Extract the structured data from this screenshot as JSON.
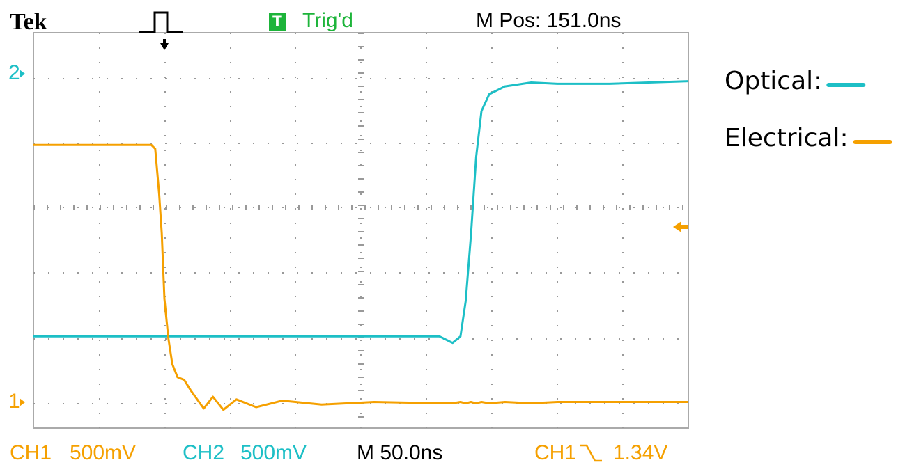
{
  "chart_data": {
    "type": "line",
    "x": [
      0,
      50,
      90,
      93,
      96,
      98,
      100,
      103,
      106,
      110,
      115,
      120,
      125,
      130,
      137,
      145,
      155,
      170,
      190,
      220,
      260,
      310,
      320,
      326,
      330,
      334,
      338,
      342,
      348,
      360,
      380,
      400,
      440,
      500
    ],
    "xlim": [
      0,
      500
    ],
    "series": [
      {
        "name": "Optical:",
        "color": "#1dbfc6",
        "ylim": [
          -2.67,
          0.35
        ],
        "values": [
          -1.97,
          -1.97,
          -1.97,
          -1.97,
          -1.97,
          -1.97,
          -1.97,
          -1.97,
          -1.97,
          -1.97,
          -1.97,
          -1.97,
          -1.97,
          -1.97,
          -1.97,
          -1.97,
          -1.97,
          -1.97,
          -1.97,
          -1.97,
          -1.97,
          -1.97,
          -2.02,
          -1.97,
          -1.7,
          -1.2,
          -0.6,
          -0.25,
          -0.12,
          -0.06,
          -0.03,
          -0.04,
          -0.04,
          -0.02
        ]
      },
      {
        "name": "Electrical:",
        "color": "#f5a000",
        "ylim": [
          -0.19,
          2.84
        ],
        "values": [
          1.98,
          1.98,
          1.98,
          1.95,
          1.6,
          1.3,
          0.8,
          0.5,
          0.3,
          0.2,
          0.18,
          0.1,
          0.03,
          -0.04,
          0.05,
          -0.05,
          0.03,
          -0.03,
          0.02,
          -0.01,
          0.01,
          0,
          0,
          0.01,
          0,
          0.01,
          0,
          0.01,
          0,
          0.01,
          0,
          0.01,
          0.01,
          0.01
        ]
      }
    ]
  },
  "scope": {
    "brand": "Tek",
    "trigger_badge": "T",
    "trigger_status": "Trig'd",
    "m_pos": "M Pos: 151.0ns",
    "ch2_marker": "2",
    "ch1_marker": "1",
    "ch1_label": "CH1",
    "ch1_scale": "500mV",
    "ch2_label": "CH2",
    "ch2_scale": "500mV",
    "timebase": "M 50.0ns",
    "trigger_source": "CH1",
    "trigger_level": "1.34V"
  }
}
